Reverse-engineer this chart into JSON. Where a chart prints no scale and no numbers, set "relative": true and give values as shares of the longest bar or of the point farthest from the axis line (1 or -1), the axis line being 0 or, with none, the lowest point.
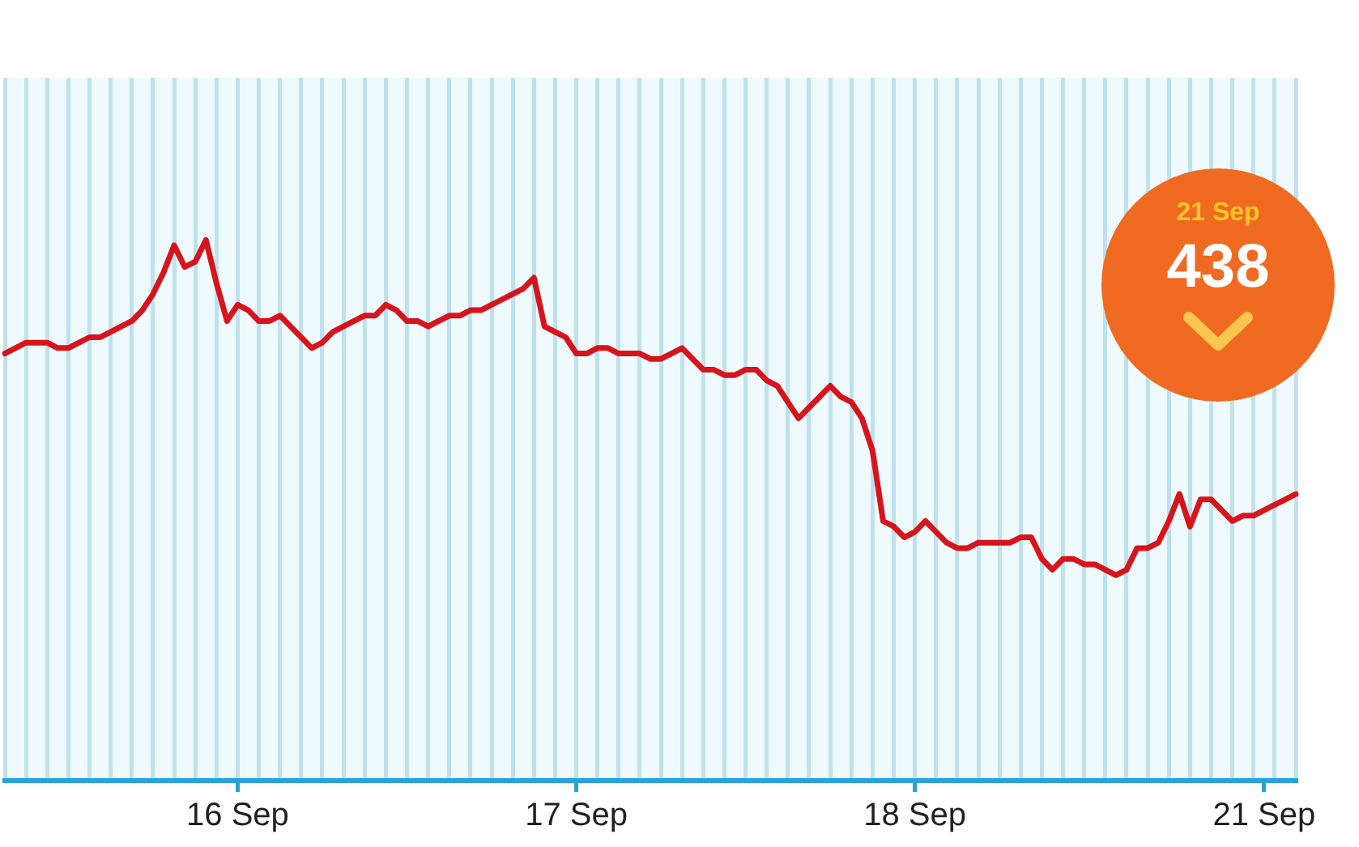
{
  "chart_data": {
    "type": "line",
    "relative": true,
    "categories": [
      null,
      null,
      null,
      null,
      null,
      null,
      null,
      null,
      null,
      null,
      null,
      null,
      null,
      null,
      null,
      null,
      null,
      null,
      null,
      null,
      null,
      null,
      "16 Sep",
      null,
      null,
      null,
      null,
      null,
      null,
      null,
      null,
      null,
      null,
      null,
      null,
      null,
      null,
      null,
      null,
      null,
      null,
      null,
      null,
      null,
      null,
      null,
      null,
      null,
      null,
      null,
      null,
      null,
      null,
      null,
      "17 Sep",
      null,
      null,
      null,
      null,
      null,
      null,
      null,
      null,
      null,
      null,
      null,
      null,
      null,
      null,
      null,
      null,
      null,
      null,
      null,
      null,
      null,
      null,
      null,
      null,
      null,
      null,
      null,
      null,
      null,
      null,
      null,
      "18 Sep",
      null,
      null,
      null,
      null,
      null,
      null,
      null,
      null,
      null,
      null,
      null,
      null,
      null,
      null,
      null,
      null,
      null,
      null,
      null,
      null,
      null,
      null,
      null,
      null,
      null,
      null,
      null,
      null,
      null,
      null,
      null,
      null,
      "21 Sep",
      null,
      null,
      null
    ],
    "series": [
      {
        "color": "#d7141c",
        "values": [
          0.79,
          0.8,
          0.81,
          0.81,
          0.81,
          0.8,
          0.8,
          0.81,
          0.82,
          0.82,
          0.83,
          0.84,
          0.85,
          0.87,
          0.9,
          0.94,
          0.99,
          0.95,
          0.96,
          1,
          0.92,
          0.85,
          0.88,
          0.87,
          0.85,
          0.85,
          0.86,
          0.84,
          0.82,
          0.8,
          0.81,
          0.83,
          0.84,
          0.85,
          0.86,
          0.86,
          0.88,
          0.87,
          0.85,
          0.85,
          0.84,
          0.85,
          0.86,
          0.86,
          0.87,
          0.87,
          0.88,
          0.89,
          0.9,
          0.91,
          0.93,
          0.84,
          0.83,
          0.82,
          0.79,
          0.79,
          0.8,
          0.8,
          0.79,
          0.79,
          0.79,
          0.78,
          0.78,
          0.79,
          0.8,
          0.78,
          0.76,
          0.76,
          0.75,
          0.75,
          0.76,
          0.76,
          0.74,
          0.73,
          0.7,
          0.67,
          0.69,
          0.71,
          0.73,
          0.71,
          0.7,
          0.67,
          0.61,
          0.48,
          0.47,
          0.45,
          0.46,
          0.48,
          0.46,
          0.44,
          0.43,
          0.43,
          0.44,
          0.44,
          0.44,
          0.44,
          0.45,
          0.45,
          0.41,
          0.39,
          0.41,
          0.41,
          0.4,
          0.4,
          0.39,
          0.38,
          0.39,
          0.43,
          0.43,
          0.44,
          0.48,
          0.53,
          0.47,
          0.52,
          0.52,
          0.5,
          0.48,
          0.49,
          0.49,
          0.5,
          0.51,
          0.52,
          0.53
        ]
      }
    ],
    "grid": "x",
    "marker": "none",
    "line_style": "solid",
    "annotations": [
      "21 Sep",
      "438"
    ]
  }
}
